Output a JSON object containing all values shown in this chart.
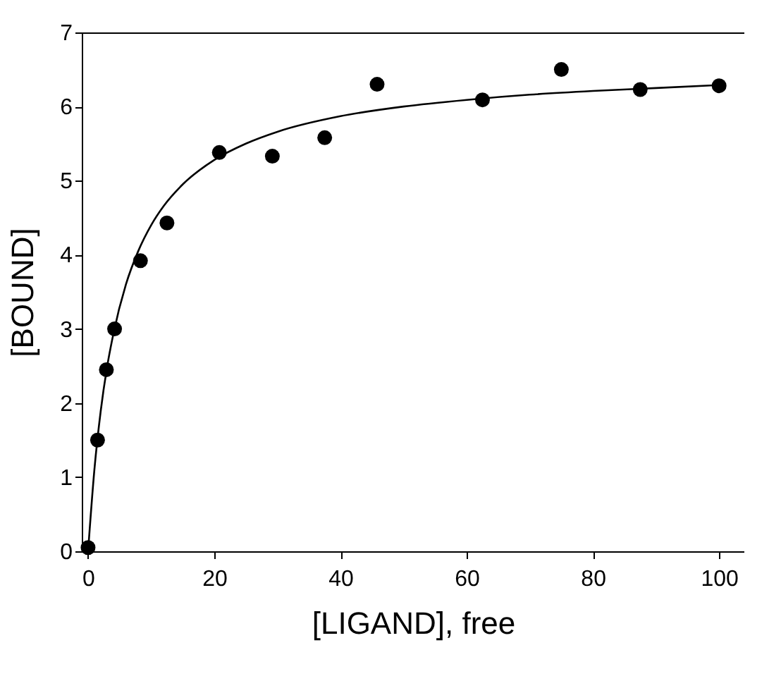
{
  "chart_data": {
    "type": "scatter",
    "xlabel": "[LIGAND], free",
    "ylabel": "[BOUND]",
    "xlim": [
      -1,
      104
    ],
    "ylim": [
      0,
      7
    ],
    "xticks": [
      0,
      20,
      40,
      60,
      80,
      100
    ],
    "yticks": [
      0,
      1,
      2,
      3,
      4,
      5,
      6,
      7
    ],
    "grid": false,
    "legend": false,
    "series": [
      {
        "color": "#000000",
        "marker": "circle",
        "x": [
          0,
          1.5,
          2.9,
          4.2,
          8.3,
          12.5,
          20.8,
          29.2,
          37.5,
          45.8,
          62.5,
          75,
          87.5,
          100
        ],
        "values": [
          0.05,
          1.5,
          2.45,
          3.0,
          3.92,
          4.43,
          5.38,
          5.33,
          5.58,
          6.3,
          6.09,
          6.5,
          6.23,
          6.28
        ]
      },
      {
        "type": "line",
        "color": "#000000",
        "marker": "none",
        "line_style": "solid",
        "x": [
          0,
          1,
          2,
          3,
          4,
          6,
          8,
          10,
          12,
          15,
          20,
          25,
          30,
          40,
          50,
          60,
          70,
          80,
          90,
          100
        ],
        "values": [
          0,
          1.1,
          1.89,
          2.48,
          2.93,
          3.6,
          4.06,
          4.4,
          4.66,
          4.95,
          5.28,
          5.5,
          5.66,
          5.87,
          6.0,
          6.09,
          6.16,
          6.21,
          6.25,
          6.29
        ]
      }
    ]
  }
}
